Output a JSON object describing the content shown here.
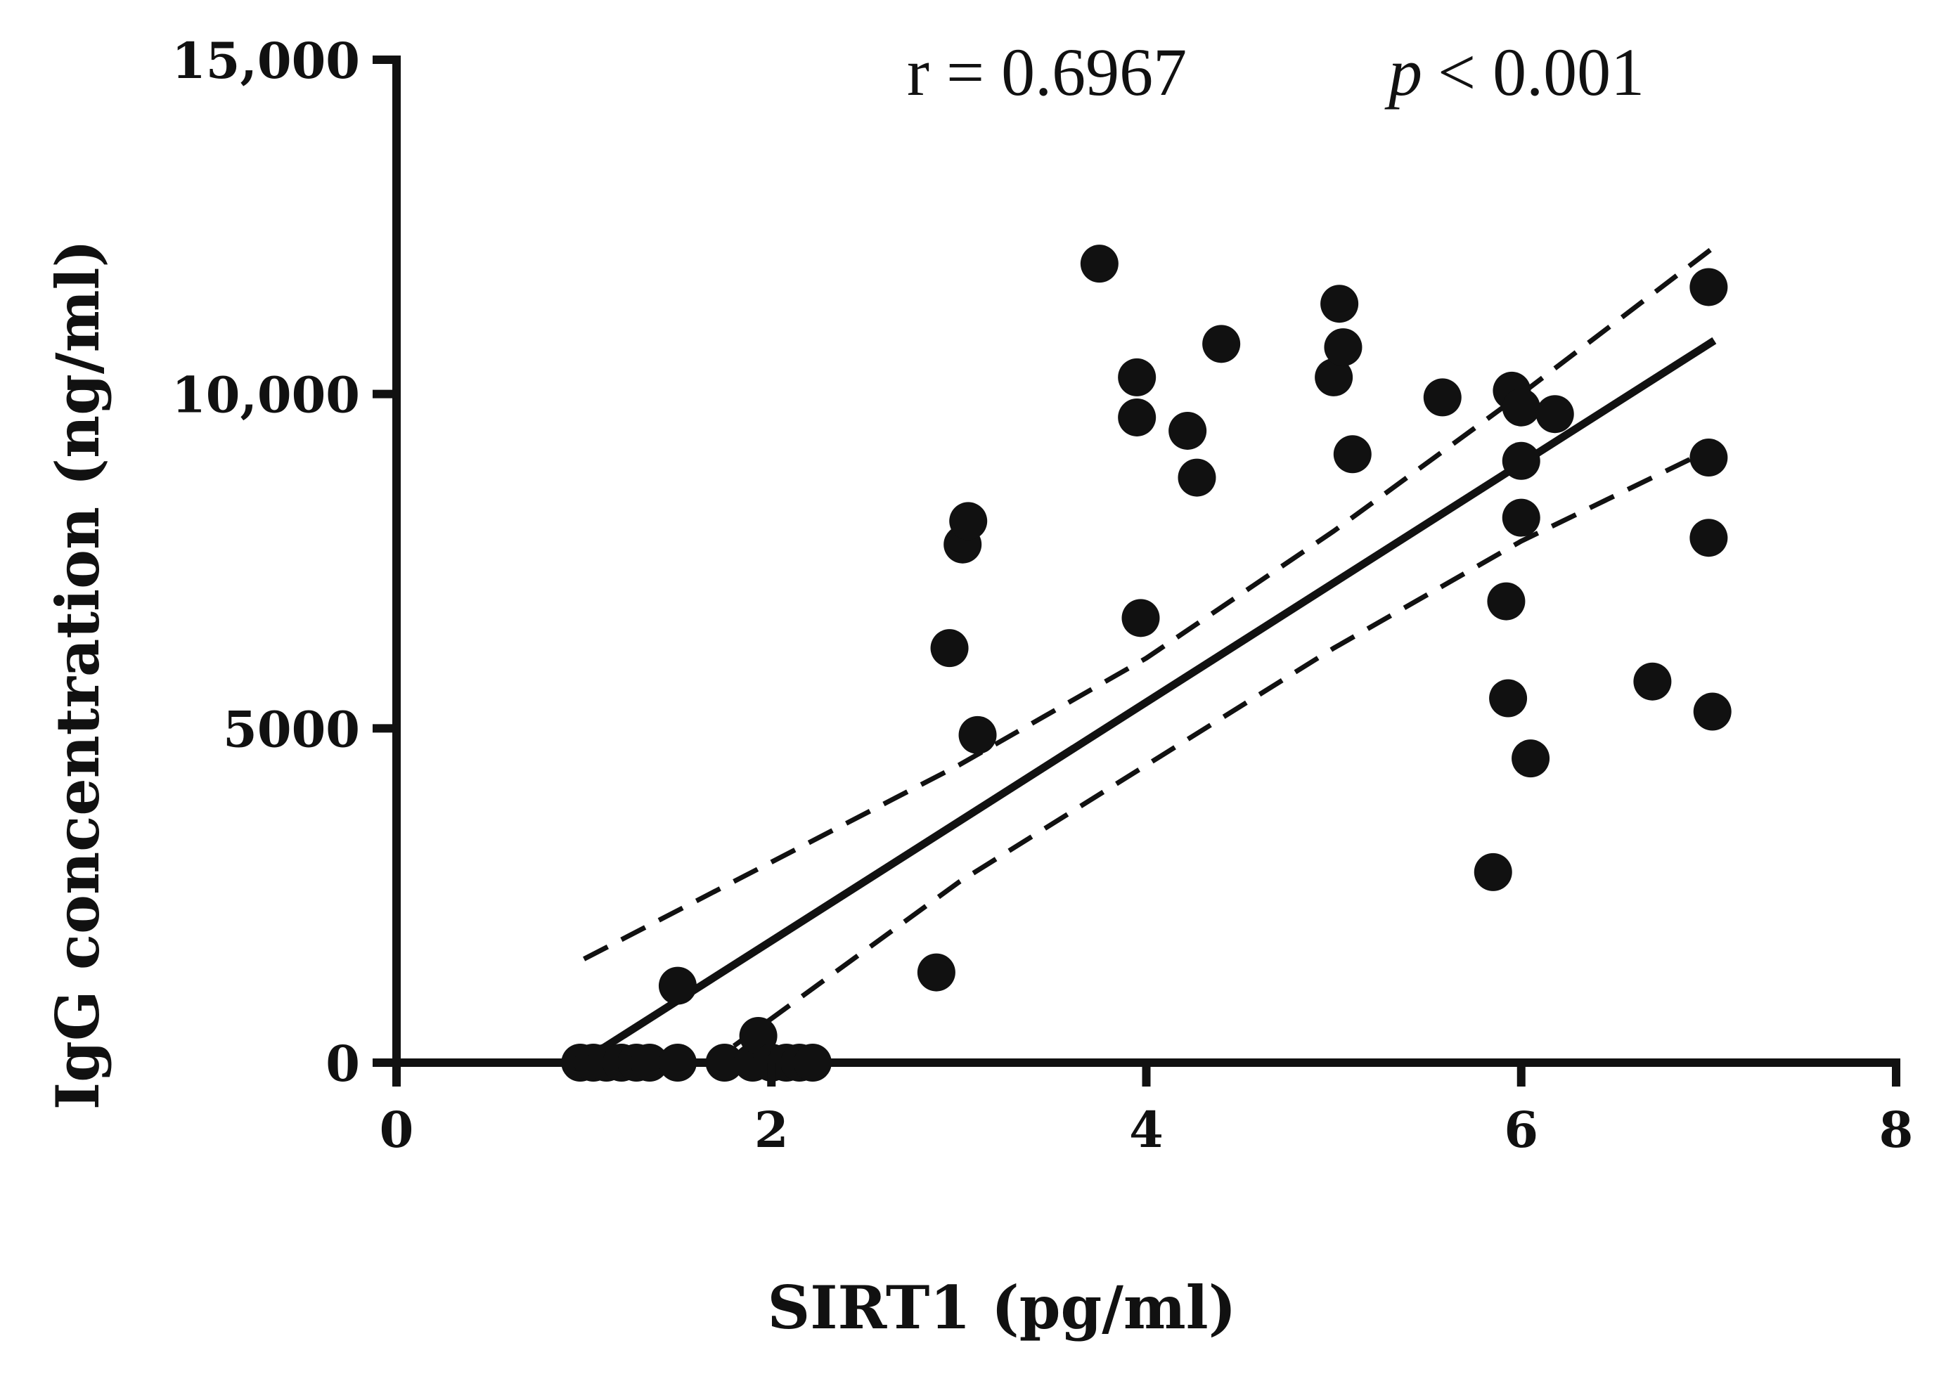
{
  "chart_data": {
    "type": "scatter",
    "title": "",
    "xlabel": "SIRT1 (pg/ml)",
    "ylabel": "IgG concentration (ng/ml)",
    "xlim": [
      0,
      8
    ],
    "ylim": [
      0,
      15000
    ],
    "x_ticks": [
      {
        "value": 0,
        "label": "0"
      },
      {
        "value": 2,
        "label": "2"
      },
      {
        "value": 4,
        "label": "4"
      },
      {
        "value": 6,
        "label": "6"
      },
      {
        "value": 8,
        "label": "8"
      }
    ],
    "y_ticks": [
      {
        "value": 0,
        "label": "0"
      },
      {
        "value": 5000,
        "label": "5000"
      },
      {
        "value": 10000,
        "label": "10,000"
      },
      {
        "value": 15000,
        "label": "15,000"
      }
    ],
    "grid": false,
    "annotations": {
      "r_text": "r = 0.6967",
      "p_symbol": "p",
      "p_text": "< 0.001"
    },
    "series": [
      {
        "name": "samples",
        "points": [
          {
            "x": 0.98,
            "y": 0
          },
          {
            "x": 1.05,
            "y": 0
          },
          {
            "x": 1.12,
            "y": 0
          },
          {
            "x": 1.2,
            "y": 0
          },
          {
            "x": 1.28,
            "y": 0
          },
          {
            "x": 1.35,
            "y": 0
          },
          {
            "x": 1.5,
            "y": 0
          },
          {
            "x": 1.5,
            "y": 1150
          },
          {
            "x": 1.75,
            "y": 0
          },
          {
            "x": 1.9,
            "y": 0
          },
          {
            "x": 1.93,
            "y": 400
          },
          {
            "x": 2.0,
            "y": 0
          },
          {
            "x": 2.08,
            "y": 0
          },
          {
            "x": 2.15,
            "y": 0
          },
          {
            "x": 2.22,
            "y": 0
          },
          {
            "x": 2.88,
            "y": 1350
          },
          {
            "x": 2.95,
            "y": 6200
          },
          {
            "x": 3.02,
            "y": 7750
          },
          {
            "x": 3.05,
            "y": 8100
          },
          {
            "x": 3.1,
            "y": 4900
          },
          {
            "x": 3.75,
            "y": 11950
          },
          {
            "x": 3.95,
            "y": 10250
          },
          {
            "x": 3.95,
            "y": 9650
          },
          {
            "x": 3.97,
            "y": 6650
          },
          {
            "x": 4.22,
            "y": 9450
          },
          {
            "x": 4.27,
            "y": 8750
          },
          {
            "x": 4.4,
            "y": 10750
          },
          {
            "x": 5.0,
            "y": 10250
          },
          {
            "x": 5.03,
            "y": 11350
          },
          {
            "x": 5.05,
            "y": 10700
          },
          {
            "x": 5.1,
            "y": 9100
          },
          {
            "x": 5.58,
            "y": 9950
          },
          {
            "x": 5.85,
            "y": 2850
          },
          {
            "x": 5.92,
            "y": 6900
          },
          {
            "x": 5.93,
            "y": 5450
          },
          {
            "x": 5.95,
            "y": 10050
          },
          {
            "x": 6.0,
            "y": 9800
          },
          {
            "x": 6.0,
            "y": 9000
          },
          {
            "x": 6.0,
            "y": 8150
          },
          {
            "x": 6.05,
            "y": 4550
          },
          {
            "x": 6.18,
            "y": 9700
          },
          {
            "x": 6.7,
            "y": 5700
          },
          {
            "x": 7.0,
            "y": 11600
          },
          {
            "x": 7.0,
            "y": 9050
          },
          {
            "x": 7.0,
            "y": 7850
          },
          {
            "x": 7.02,
            "y": 5250
          }
        ]
      }
    ],
    "fit_line": {
      "x": [
        0.98,
        7.03
      ],
      "y": [
        0,
        10800
      ]
    },
    "ci_upper": [
      {
        "x": 1.0,
        "y": 1550
      },
      {
        "x": 2.0,
        "y": 3000
      },
      {
        "x": 3.0,
        "y": 4450
      },
      {
        "x": 4.0,
        "y": 6050
      },
      {
        "x": 5.0,
        "y": 7950
      },
      {
        "x": 6.0,
        "y": 10000
      },
      {
        "x": 7.03,
        "y": 12200
      }
    ],
    "ci_lower": [
      {
        "x": 1.8,
        "y": 250
      },
      {
        "x": 3.0,
        "y": 2700
      },
      {
        "x": 4.0,
        "y": 4450
      },
      {
        "x": 5.0,
        "y": 6200
      },
      {
        "x": 6.0,
        "y": 7800
      },
      {
        "x": 7.03,
        "y": 9200
      }
    ]
  }
}
